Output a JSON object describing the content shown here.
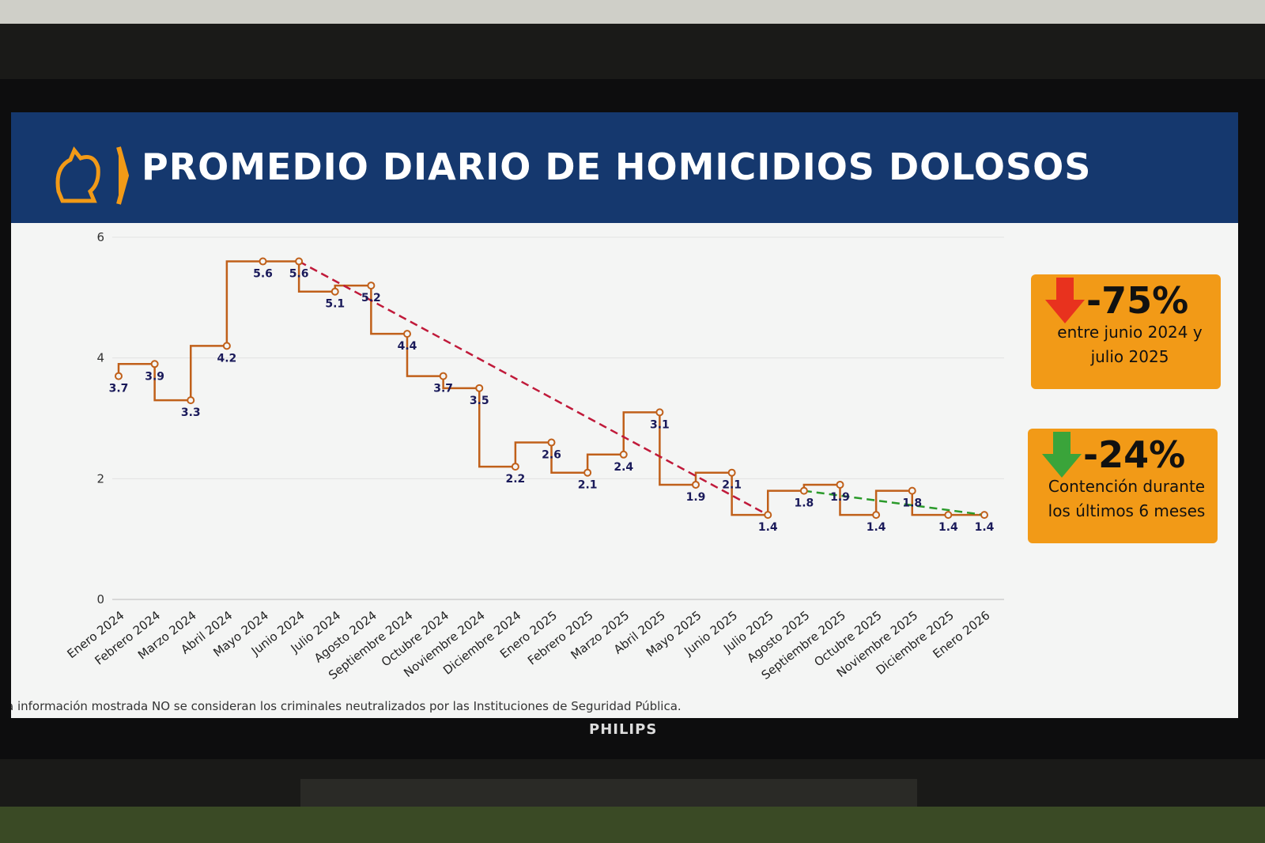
{
  "tv": {
    "brand": "PHILIPS"
  },
  "slide": {
    "title": "PROMEDIO DIARIO DE HOMICIDIOS DOLOSOS",
    "footnote": "a información mostrada NO se consideran los criminales neutralizados por las Instituciones de Seguridad Pública.",
    "badges": [
      {
        "pct": "-75%",
        "desc_line1": "entre junio 2024 y",
        "desc_line2": "julio 2025",
        "arrow": "arrow-down-red-icon",
        "arrow_color": "#e8321e"
      },
      {
        "pct": "-24%",
        "desc_line1": "Contención durante",
        "desc_line2": "los últimos 6 meses",
        "arrow": "arrow-down-green-icon",
        "arrow_color": "#3aa43a"
      }
    ],
    "colors": {
      "header": "#15386e",
      "line": "#c0601a",
      "badge": "#f29a17",
      "trend_red": "#c01a3a",
      "trend_green": "#2a9a2a",
      "label": "#1a1a5a"
    }
  },
  "chart_data": {
    "type": "line",
    "style": "step",
    "title": "PROMEDIO DIARIO DE HOMICIDIOS DOLOSOS",
    "xlabel": "",
    "ylabel": "",
    "ylim": [
      0,
      6
    ],
    "yticks": [
      0,
      2,
      4,
      6
    ],
    "grid": true,
    "categories": [
      "Enero 2024",
      "Febrero 2024",
      "Marzo 2024",
      "Abril 2024",
      "Mayo 2024",
      "Junio 2024",
      "Julio 2024",
      "Agosto 2024",
      "Septiembre 2024",
      "Octubre 2024",
      "Noviembre 2024",
      "Diciembre 2024",
      "Enero 2025",
      "Febrero 2025",
      "Marzo 2025",
      "Abril 2025",
      "Mayo 2025",
      "Junio 2025",
      "Julio 2025",
      "Agosto 2025",
      "Septiembre 2025",
      "Octubre 2025",
      "Noviembre 2025",
      "Diciembre 2025",
      "Enero 2026"
    ],
    "values": [
      3.7,
      3.9,
      3.3,
      4.2,
      5.6,
      5.6,
      5.1,
      5.2,
      4.4,
      3.7,
      3.5,
      2.2,
      2.6,
      2.1,
      2.4,
      3.1,
      1.9,
      2.1,
      1.4,
      1.8,
      1.9,
      1.4,
      1.8,
      1.4,
      1.4
    ],
    "trendlines": [
      {
        "from": "Junio 2024",
        "to": "Julio 2025",
        "color": "#c01a3a"
      },
      {
        "from": "Agosto 2025",
        "to": "Enero 2026",
        "color": "#2a9a2a"
      }
    ]
  }
}
